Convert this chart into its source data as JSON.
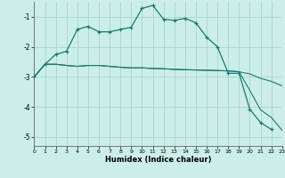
{
  "xlabel": "Humidex (Indice chaleur)",
  "background_color": "#cceee8",
  "grid_color": "#aad4ce",
  "line_color": "#1a7a6e",
  "xlim": [
    0,
    23
  ],
  "ylim": [
    -5.3,
    -0.5
  ],
  "yticks": [
    -5,
    -4,
    -3,
    -2,
    -1
  ],
  "xticks": [
    0,
    1,
    2,
    3,
    4,
    5,
    6,
    7,
    8,
    9,
    10,
    11,
    12,
    13,
    14,
    15,
    16,
    17,
    18,
    19,
    20,
    21,
    22,
    23
  ],
  "series": [
    {
      "x": [
        0,
        1,
        2,
        3,
        4,
        5,
        6,
        7,
        8,
        9,
        10,
        11,
        12,
        13,
        14,
        15,
        16,
        17,
        18,
        19,
        20,
        21,
        22,
        23
      ],
      "y": [
        -3.0,
        -2.58,
        -2.58,
        -2.62,
        -2.65,
        -2.62,
        -2.62,
        -2.65,
        -2.68,
        -2.7,
        -2.7,
        -2.72,
        -2.73,
        -2.75,
        -2.76,
        -2.77,
        -2.78,
        -2.79,
        -2.8,
        -2.83,
        -2.9,
        -3.05,
        -3.15,
        -3.3
      ],
      "marker": false
    },
    {
      "x": [
        0,
        1,
        2,
        3,
        4,
        5,
        6,
        7,
        8,
        9,
        10,
        11,
        12,
        13,
        14,
        15,
        16,
        17,
        18,
        19,
        20,
        21,
        22,
        23
      ],
      "y": [
        -3.0,
        -2.58,
        -2.58,
        -2.62,
        -2.65,
        -2.62,
        -2.62,
        -2.65,
        -2.68,
        -2.7,
        -2.7,
        -2.72,
        -2.73,
        -2.75,
        -2.76,
        -2.77,
        -2.78,
        -2.79,
        -2.8,
        -2.83,
        -3.45,
        -4.1,
        -4.35,
        -4.78
      ],
      "marker": false
    },
    {
      "x": [
        0,
        1,
        2,
        3,
        4,
        5,
        6,
        7,
        8,
        9,
        10,
        11,
        12,
        13,
        14,
        15,
        16,
        17,
        18,
        19,
        20,
        21,
        22
      ],
      "y": [
        -3.0,
        -2.58,
        -2.25,
        -2.15,
        -1.42,
        -1.32,
        -1.5,
        -1.5,
        -1.42,
        -1.35,
        -0.72,
        -0.62,
        -1.08,
        -1.12,
        -1.05,
        -1.2,
        -1.68,
        -2.0,
        -2.88,
        -2.88,
        -4.08,
        -4.52,
        -4.75
      ],
      "marker": true
    }
  ]
}
